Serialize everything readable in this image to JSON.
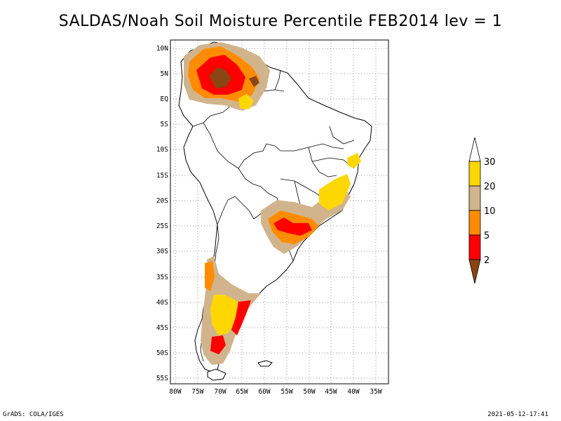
{
  "title": "SALDAS/Noah Soil Moisture Percentile FEB2014 lev = 1",
  "lat_labels": [
    "10N",
    "5N",
    "EQ",
    "5S",
    "10S",
    "15S",
    "20S",
    "25S",
    "30S",
    "35S",
    "40S",
    "45S",
    "50S",
    "55S"
  ],
  "lon_labels": [
    "80W",
    "75W",
    "70W",
    "65W",
    "60W",
    "55W",
    "50W",
    "45W",
    "40W",
    "35W"
  ],
  "colorbar": {
    "labels": [
      "2",
      "5",
      "10",
      "20",
      "30"
    ],
    "colors": {
      "lt2": "#8b4513",
      "2to5": "#ff0000",
      "5to10": "#ff8c00",
      "10to20": "#d2b48c",
      "20to30": "#ffd700",
      "gt30": "#ffffff"
    }
  },
  "footer_left": "GrADS: COLA/IGES",
  "footer_right": "2021-05-12-17:41"
}
